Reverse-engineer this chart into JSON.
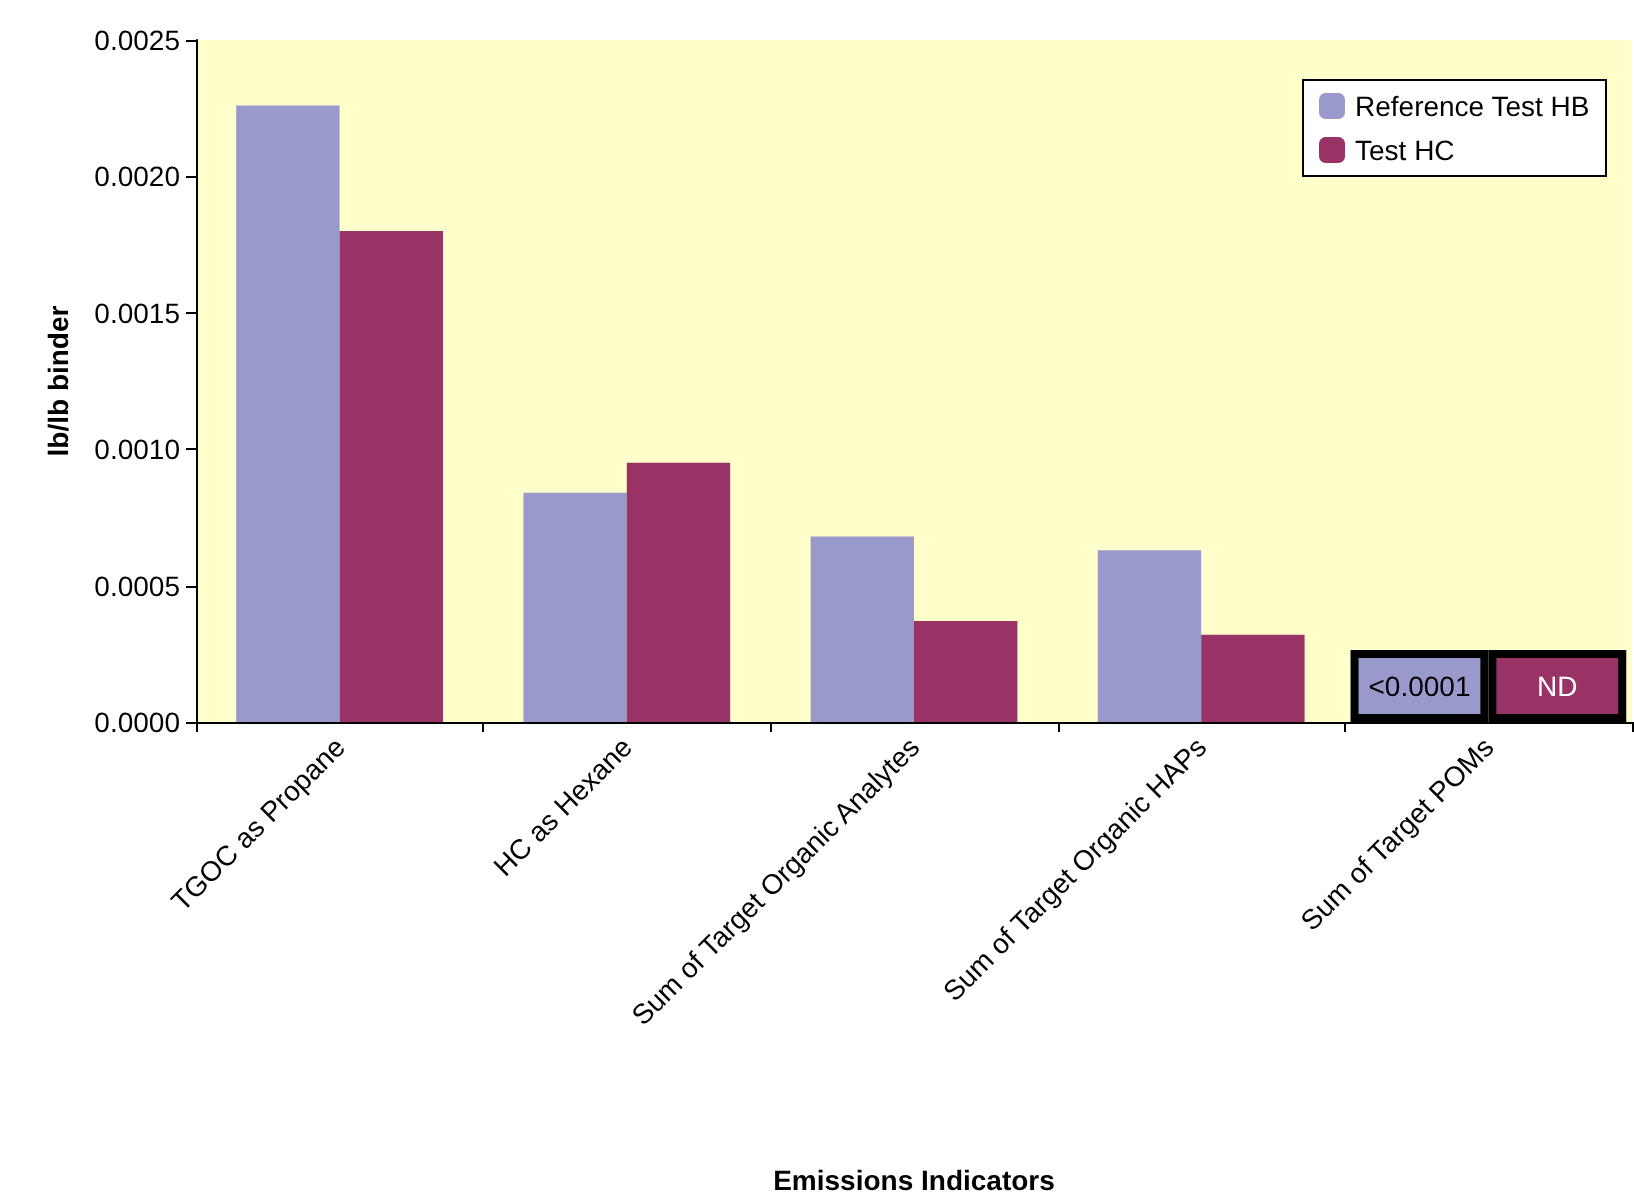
{
  "chart_data": {
    "type": "bar",
    "xlabel": "Emissions Indicators",
    "ylabel": "lb/lb binder",
    "categories": [
      "TGOC as Propane",
      "HC as Hexane",
      "Sum of Target Organic Analytes",
      "Sum of Target Organic HAPs",
      "Sum of Target POMs"
    ],
    "series": [
      {
        "name": "Reference Test HB",
        "color": "#9999cc",
        "values": [
          0.00226,
          0.00084,
          0.00068,
          0.00063,
          null
        ]
      },
      {
        "name": "Test HC",
        "color": "#993366",
        "values": [
          0.0018,
          0.00095,
          0.00037,
          0.00032,
          null
        ]
      }
    ],
    "annotations": [
      "<0.0001",
      "ND"
    ],
    "ylim": [
      0,
      0.0025
    ],
    "yticks": [
      {
        "value": 0,
        "label": "0.0000"
      },
      {
        "value": 0.0005,
        "label": "0.0005"
      },
      {
        "value": 0.001,
        "label": "0.0010"
      },
      {
        "value": 0.0015,
        "label": "0.0015"
      },
      {
        "value": 0.002,
        "label": "0.0020"
      },
      {
        "value": 0.0025,
        "label": "0.0025"
      }
    ],
    "grid": false,
    "legend": "top right"
  }
}
